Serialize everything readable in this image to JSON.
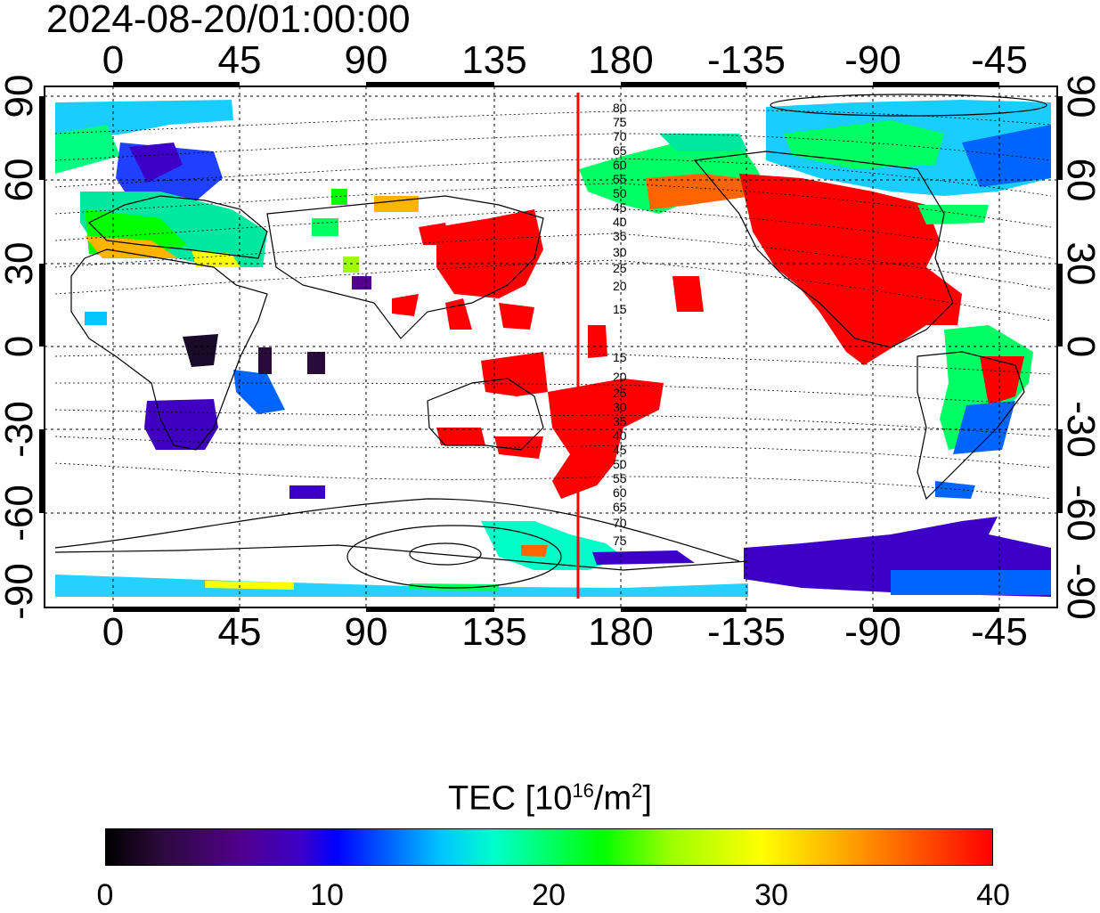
{
  "title": "2024-08-20/01:00:00",
  "x_ticks_top": [
    "0",
    "45",
    "90",
    "135",
    "180",
    "-135",
    "-90",
    "-45"
  ],
  "x_ticks_bottom": [
    "0",
    "45",
    "90",
    "135",
    "180",
    "-135",
    "-90",
    "-45"
  ],
  "y_ticks_left": [
    "90",
    "60",
    "30",
    "0",
    "-30",
    "-60",
    "-90"
  ],
  "y_ticks_right": [
    "90",
    "60",
    "30",
    "0",
    "-30",
    "-60",
    "-90"
  ],
  "contour_labels_north": [
    "80",
    "75",
    "70",
    "65",
    "60",
    "55",
    "50",
    "45",
    "40",
    "35",
    "30",
    "25",
    "20",
    "15"
  ],
  "contour_labels_south": [
    "15",
    "20",
    "25",
    "30",
    "35",
    "40",
    "45",
    "50",
    "55",
    "60",
    "65",
    "70",
    "75"
  ],
  "colorbar": {
    "title_prefix": "TEC  [10",
    "title_exp": "16",
    "title_mid": "/m",
    "title_exp2": "2",
    "title_suffix": "]",
    "tick_labels": [
      "0",
      "10",
      "20",
      "30",
      "40"
    ],
    "min": 0,
    "max": 40
  },
  "terminator_longitude": 165,
  "colors": {
    "terminator": "#ff0000",
    "high_tec": "#ff0000",
    "low_tec": "#4000c0"
  }
}
